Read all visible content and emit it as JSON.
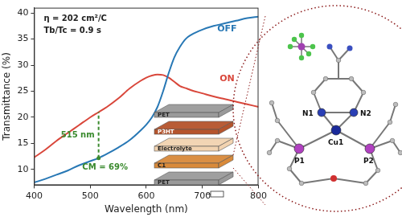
{
  "chart_data": {
    "type": "line",
    "x_label": "Wavelength (nm)",
    "y_label": "Transmittance (%)",
    "x": [
      400,
      420,
      440,
      460,
      480,
      500,
      515,
      530,
      550,
      570,
      590,
      600,
      610,
      620,
      630,
      640,
      650,
      660,
      670,
      680,
      700,
      720,
      740,
      760,
      780,
      800
    ],
    "series": [
      {
        "name": "OFF",
        "color": "#2878b5",
        "values": [
          7.5,
          8.2,
          9.0,
          9.8,
          10.8,
          11.6,
          12.2,
          13.0,
          14.2,
          15.6,
          17.5,
          18.6,
          20.0,
          22.0,
          25.0,
          28.5,
          31.5,
          33.5,
          35.0,
          35.8,
          36.8,
          37.5,
          38.0,
          38.5,
          39.0,
          39.3
        ]
      },
      {
        "name": "ON",
        "color": "#d9473b",
        "values": [
          12.3,
          13.8,
          15.5,
          17.0,
          18.5,
          20.0,
          21.0,
          22.0,
          23.6,
          25.5,
          27.0,
          27.6,
          28.0,
          28.2,
          28.1,
          27.6,
          26.8,
          26.0,
          25.6,
          25.2,
          24.6,
          24.0,
          23.5,
          23.0,
          22.5,
          22.0
        ]
      }
    ],
    "xlim": [
      400,
      800
    ],
    "ylim": [
      7,
      41
    ],
    "xticks": [
      400,
      500,
      600,
      700,
      800
    ],
    "yticks": [
      10,
      15,
      20,
      25,
      30,
      35,
      40
    ],
    "grid": false,
    "annotations": [
      {
        "text": "η = 202 cm²/C"
      },
      {
        "text": "Tb/Tc = 0.9 s"
      }
    ],
    "guide": {
      "x": 515,
      "label": "515 nm",
      "note": "CM = 69%",
      "color": "#3a8a2e"
    }
  },
  "inset": {
    "layers": [
      "PET",
      "P3HT",
      "Electrolyte",
      "C1",
      "PET"
    ]
  },
  "structure": {
    "labels": [
      "N1",
      "N2",
      "Cu1",
      "P1",
      "P2"
    ]
  }
}
